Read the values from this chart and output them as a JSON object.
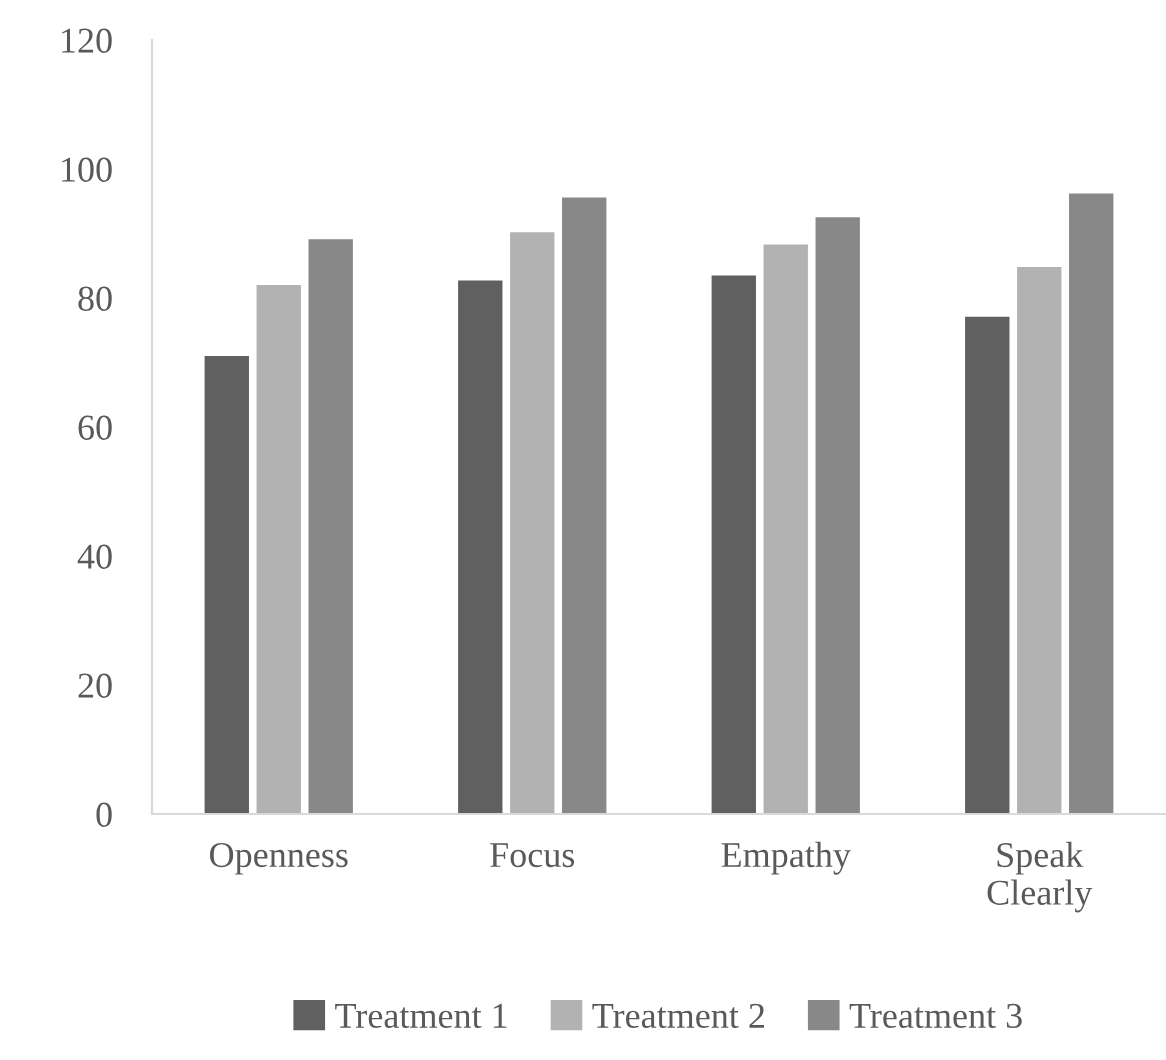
{
  "chart_data": {
    "type": "bar",
    "categories": [
      "Openness",
      "Focus",
      "Empathy",
      "Speak Clearly"
    ],
    "series": [
      {
        "name": "Treatment 1",
        "color": "#606060",
        "values": [
          71.0,
          82.7,
          83.5,
          77.1
        ]
      },
      {
        "name": "Treatment 2",
        "color": "#b2b2b2",
        "values": [
          82.0,
          90.2,
          88.3,
          84.8
        ]
      },
      {
        "name": "Treatment 3",
        "color": "#888888",
        "values": [
          89.1,
          95.6,
          92.5,
          96.2
        ]
      }
    ],
    "ylim": [
      0,
      120
    ],
    "yticks": [
      0,
      20,
      40,
      60,
      80,
      100,
      120
    ],
    "grid": false,
    "legend": "bottom"
  }
}
